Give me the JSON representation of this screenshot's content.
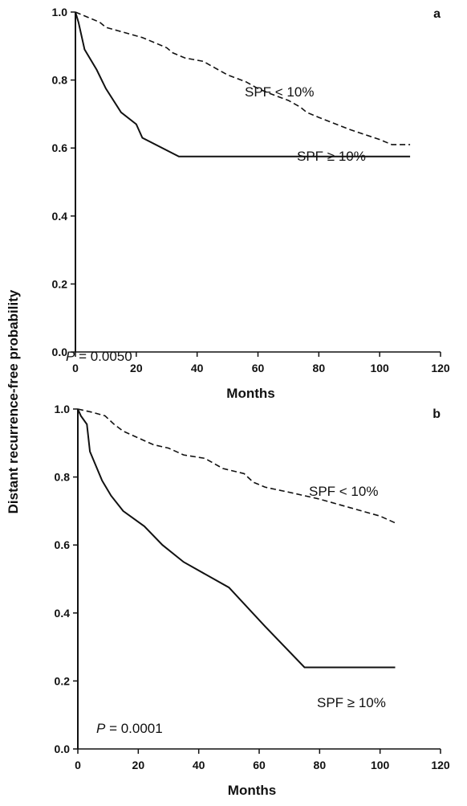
{
  "figure": {
    "ylabel": "Distant recurrence-free probability"
  },
  "chart_data": [
    {
      "type": "line",
      "panel_letter": "a",
      "xlabel": "Months",
      "xlim": [
        0,
        120
      ],
      "ylim": [
        0,
        1.0
      ],
      "xticks": [
        "0",
        "20",
        "40",
        "60",
        "80",
        "100",
        "120"
      ],
      "yticks": [
        "0.0",
        "0.2",
        "0.4",
        "0.6",
        "0.8",
        "1.0"
      ],
      "annotation": {
        "prefix": "P",
        "text": " = 0.0050"
      },
      "series": [
        {
          "label": "SPF < 10%",
          "style": "dashed",
          "x": [
            0,
            4,
            8,
            10,
            14,
            18,
            22,
            26,
            30,
            32,
            36,
            42,
            46,
            50,
            56,
            60,
            64,
            70,
            74,
            76,
            80,
            90,
            100,
            104,
            110
          ],
          "y": [
            1.0,
            0.985,
            0.97,
            0.955,
            0.945,
            0.935,
            0.925,
            0.91,
            0.895,
            0.88,
            0.865,
            0.855,
            0.835,
            0.815,
            0.795,
            0.775,
            0.76,
            0.74,
            0.72,
            0.705,
            0.69,
            0.655,
            0.625,
            0.61,
            0.61
          ]
        },
        {
          "label": "SPF ≥ 10%",
          "style": "solid",
          "x": [
            0,
            1,
            3,
            7,
            10,
            15,
            20,
            22,
            34,
            110
          ],
          "y": [
            1.0,
            0.97,
            0.89,
            0.83,
            0.775,
            0.705,
            0.67,
            0.63,
            0.575,
            0.575
          ]
        }
      ]
    },
    {
      "type": "line",
      "panel_letter": "b",
      "xlabel": "Months",
      "xlim": [
        0,
        120
      ],
      "ylim": [
        0,
        1.0
      ],
      "xticks": [
        "0",
        "20",
        "40",
        "60",
        "80",
        "100",
        "120"
      ],
      "yticks": [
        "0.0",
        "0.2",
        "0.4",
        "0.6",
        "0.8",
        "1.0"
      ],
      "annotation": {
        "prefix": "P",
        "text": " = 0.0001"
      },
      "series": [
        {
          "label": "SPF < 10%",
          "style": "dashed",
          "x": [
            0,
            5,
            9,
            12,
            15,
            20,
            25,
            30,
            35,
            42,
            48,
            55,
            58,
            62,
            70,
            80,
            90,
            100,
            105
          ],
          "y": [
            1.0,
            0.99,
            0.98,
            0.955,
            0.935,
            0.915,
            0.895,
            0.885,
            0.865,
            0.855,
            0.825,
            0.81,
            0.785,
            0.77,
            0.755,
            0.735,
            0.71,
            0.685,
            0.665
          ]
        },
        {
          "label": "SPF ≥ 10%",
          "style": "solid",
          "x": [
            0,
            1,
            3,
            4,
            8,
            11,
            15,
            22,
            28,
            35,
            50,
            62,
            75,
            105
          ],
          "y": [
            1.0,
            0.98,
            0.955,
            0.875,
            0.79,
            0.745,
            0.7,
            0.655,
            0.6,
            0.55,
            0.475,
            0.36,
            0.24,
            0.24
          ]
        }
      ]
    }
  ]
}
